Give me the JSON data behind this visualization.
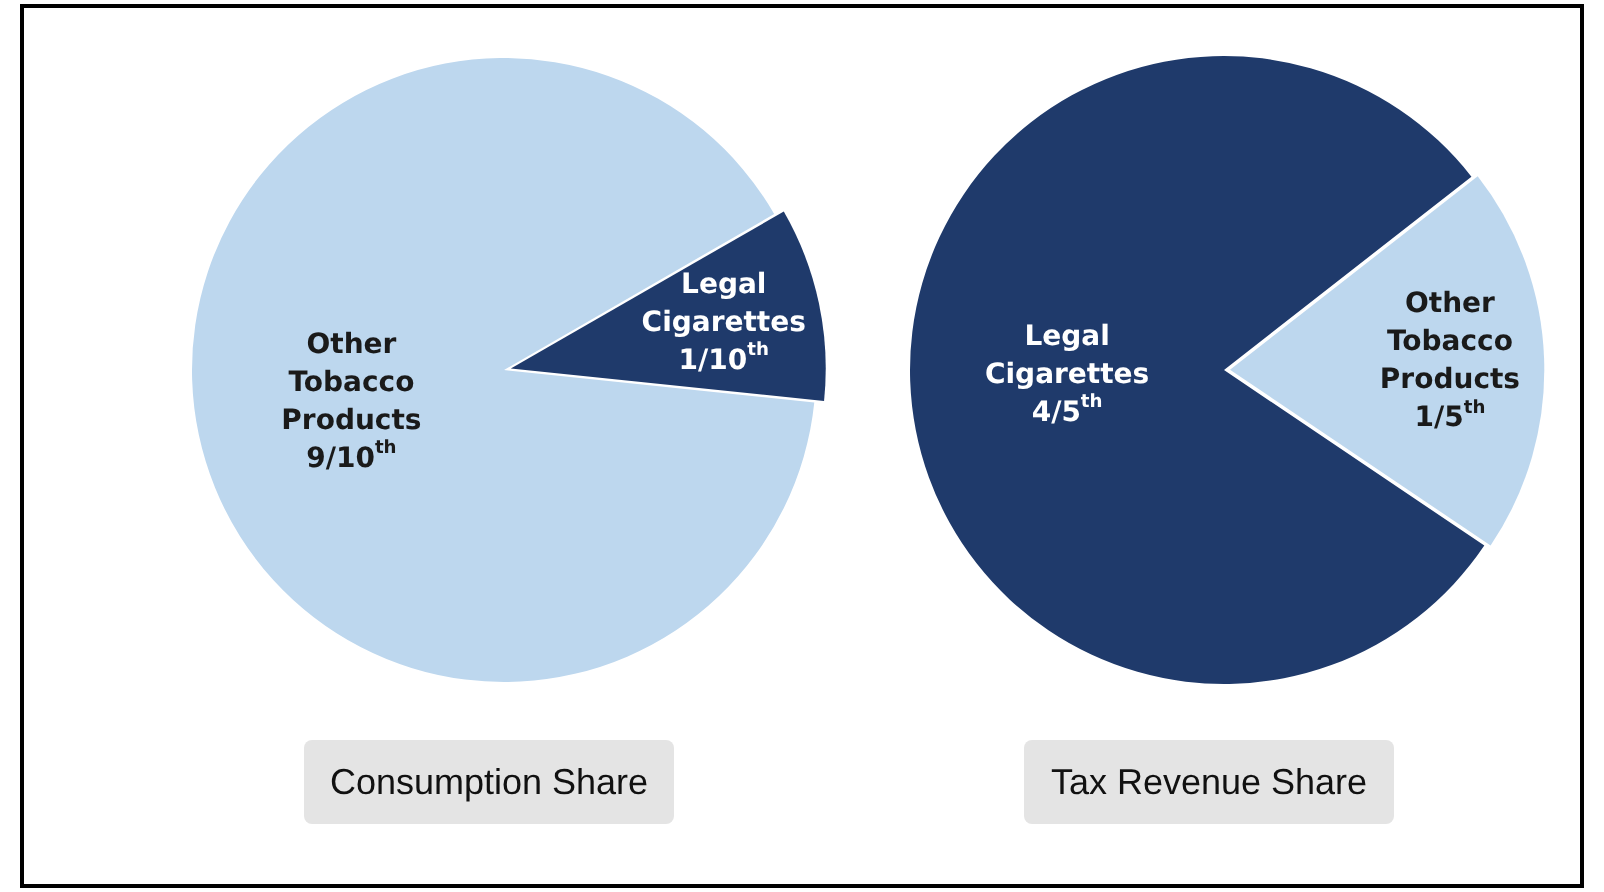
{
  "chart_data": [
    {
      "type": "pie",
      "title": "Consumption Share",
      "categories": [
        "Legal Cigarettes",
        "Other Tobacco Products"
      ],
      "values": [
        10,
        90
      ],
      "colors": [
        "#1f3a6b",
        "#bdd7ee"
      ],
      "value_labels": [
        "1/10$^{th}$",
        "9/10$^{th}$"
      ],
      "legend": false
    },
    {
      "type": "pie",
      "title": "Tax Revenue Share",
      "categories": [
        "Other Tobacco Products",
        "Legal Cigarettes"
      ],
      "values": [
        20,
        80
      ],
      "colors": [
        "#bdd7ee",
        "#1f3a6b"
      ],
      "value_labels": [
        "1/5$^{th}$",
        "4/5$^{th}$"
      ],
      "legend": false
    }
  ]
}
